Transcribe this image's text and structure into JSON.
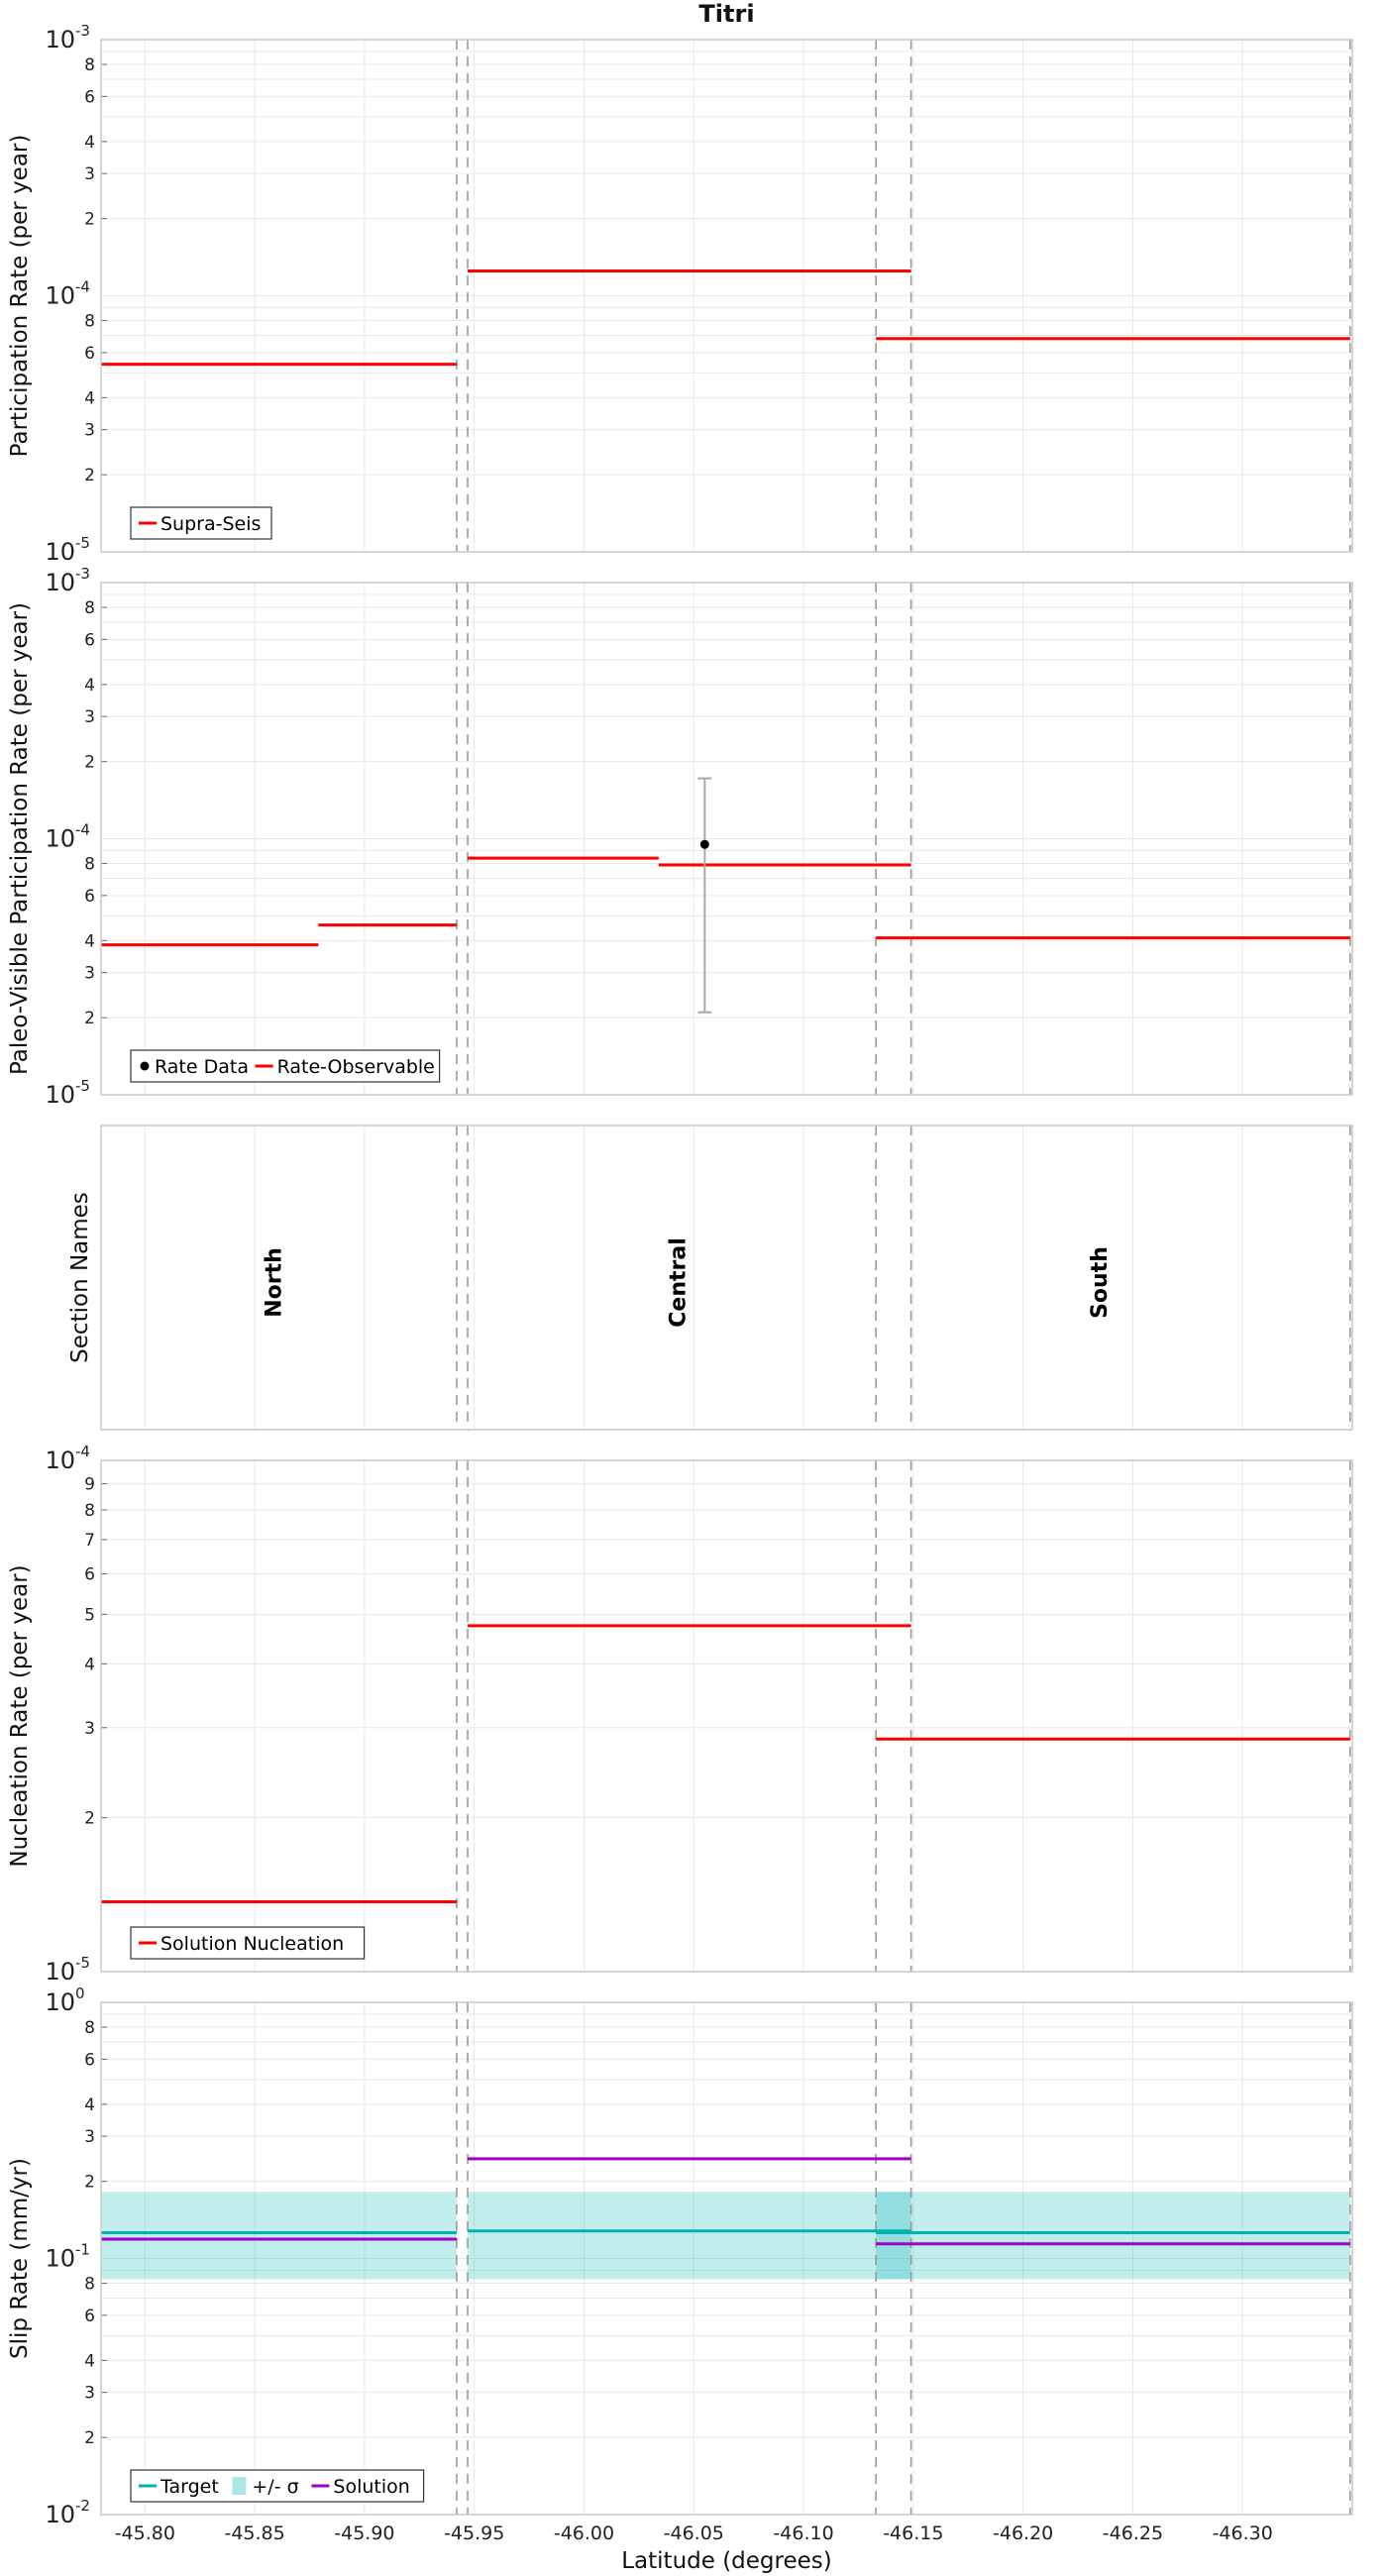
{
  "chart_data": {
    "type": "line",
    "title": "Titri",
    "xlabel": "Latitude (degrees)",
    "xlim": [
      -45.78,
      -46.35
    ],
    "x_ticks": [
      "-45.80",
      "-45.85",
      "-45.90",
      "-45.95",
      "-46.00",
      "-46.05",
      "-46.10",
      "-46.15",
      "-46.20",
      "-46.25",
      "-46.30"
    ],
    "section_boundaries": [
      -45.942,
      -45.947,
      -46.133,
      -46.149,
      -46.349
    ],
    "panels": [
      {
        "ylabel": "Participation Rate (per year)",
        "yscale": "log",
        "ylim": [
          1e-05,
          0.001
        ],
        "legend": {
          "placement": "bottom-left",
          "entries": [
            {
              "label": "Supra-Seis",
              "color": "#ff0000"
            }
          ]
        },
        "series": [
          {
            "name": "Supra-Seis",
            "color": "#ff0000",
            "segments": [
              {
                "x": [
                  -45.78,
                  -45.942
                ],
                "y": 5.4e-05
              },
              {
                "x": [
                  -45.947,
                  -46.149
                ],
                "y": 0.000125
              },
              {
                "x": [
                  -46.133,
                  -46.349
                ],
                "y": 6.8e-05
              }
            ]
          }
        ]
      },
      {
        "ylabel": "Paleo-Visible Participation Rate (per year)",
        "yscale": "log",
        "ylim": [
          1e-05,
          0.001
        ],
        "legend": {
          "placement": "bottom-left",
          "entries": [
            {
              "label": "Rate Data",
              "color": "#000000",
              "marker": "dot"
            },
            {
              "label": "Rate-Observable",
              "color": "#ff0000"
            }
          ]
        },
        "series": [
          {
            "name": "Rate-Observable",
            "color": "#ff0000",
            "segments": [
              {
                "x": [
                  -45.78,
                  -45.879
                ],
                "y": 3.85e-05
              },
              {
                "x": [
                  -45.879,
                  -45.942
                ],
                "y": 4.6e-05
              },
              {
                "x": [
                  -45.947,
                  -46.034
                ],
                "y": 8.4e-05
              },
              {
                "x": [
                  -46.034,
                  -46.149
                ],
                "y": 7.9e-05
              },
              {
                "x": [
                  -46.133,
                  -46.349
                ],
                "y": 4.1e-05
              }
            ]
          },
          {
            "name": "Rate Data",
            "color": "#000000",
            "points": [
              {
                "x": -46.055,
                "y": 9.5e-05,
                "ylow": 2.1e-05,
                "yhigh": 0.000172
              }
            ]
          }
        ]
      },
      {
        "ylabel": "Section Names",
        "sections": [
          {
            "name": "North",
            "x": -45.862
          },
          {
            "name": "Central",
            "x": -46.046
          },
          {
            "name": "South",
            "x": -46.238
          }
        ]
      },
      {
        "ylabel": "Nucleation Rate (per year)",
        "yscale": "log",
        "ylim": [
          1e-05,
          0.0001
        ],
        "legend": {
          "placement": "bottom-left",
          "entries": [
            {
              "label": "Solution Nucleation",
              "color": "#ff0000"
            }
          ]
        },
        "series": [
          {
            "name": "Solution Nucleation",
            "color": "#ff0000",
            "segments": [
              {
                "x": [
                  -45.78,
                  -45.942
                ],
                "y": 1.37e-05
              },
              {
                "x": [
                  -45.947,
                  -46.149
                ],
                "y": 4.75e-05
              },
              {
                "x": [
                  -46.133,
                  -46.349
                ],
                "y": 2.85e-05
              }
            ]
          }
        ]
      },
      {
        "ylabel": "Slip Rate (mm/yr)",
        "yscale": "log",
        "ylim": [
          0.01,
          1
        ],
        "legend": {
          "placement": "bottom-left",
          "entries": [
            {
              "label": "Target",
              "color": "#00b3b3"
            },
            {
              "label": "+/- σ",
              "color": "#aee6e6",
              "marker": "band"
            },
            {
              "label": "Solution",
              "color": "#a000c8"
            }
          ]
        },
        "bands": [
          {
            "name": "+/- σ",
            "color": "#00b3b3",
            "segments": [
              {
                "x": [
                  -45.78,
                  -45.942
                ],
                "low": 0.083,
                "high": 0.182
              },
              {
                "x": [
                  -45.947,
                  -46.149
                ],
                "low": 0.083,
                "high": 0.182
              },
              {
                "x": [
                  -46.133,
                  -46.349
                ],
                "low": 0.083,
                "high": 0.182
              }
            ]
          }
        ],
        "series": [
          {
            "name": "Target",
            "color": "#00b3b3",
            "segments": [
              {
                "x": [
                  -45.78,
                  -45.942
                ],
                "y": 0.126
              },
              {
                "x": [
                  -45.947,
                  -46.149
                ],
                "y": 0.128
              },
              {
                "x": [
                  -46.133,
                  -46.349
                ],
                "y": 0.126
              }
            ]
          },
          {
            "name": "Solution",
            "color": "#a000c8",
            "segments": [
              {
                "x": [
                  -45.78,
                  -45.942
                ],
                "y": 0.119
              },
              {
                "x": [
                  -45.947,
                  -46.149
                ],
                "y": 0.245
              },
              {
                "x": [
                  -46.133,
                  -46.349
                ],
                "y": 0.114
              }
            ]
          }
        ]
      }
    ]
  }
}
